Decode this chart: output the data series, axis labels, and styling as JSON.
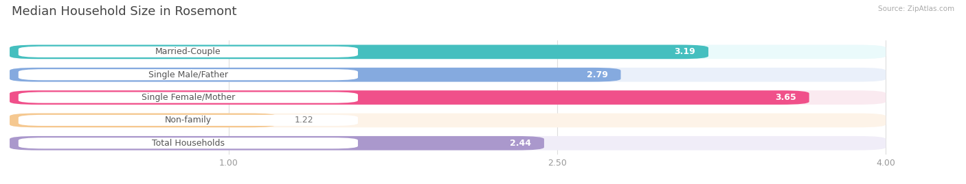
{
  "title": "Median Household Size in Rosemont",
  "source": "Source: ZipAtlas.com",
  "categories": [
    "Married-Couple",
    "Single Male/Father",
    "Single Female/Mother",
    "Non-family",
    "Total Households"
  ],
  "values": [
    3.19,
    2.79,
    3.65,
    1.22,
    2.44
  ],
  "bar_colors": [
    "#45BFBF",
    "#85AADF",
    "#F0508A",
    "#F5C890",
    "#AA98CC"
  ],
  "bar_bg_colors": [
    "#EAFAFB",
    "#EAF0FA",
    "#FAEAF0",
    "#FDF3E8",
    "#F0EDF8"
  ],
  "label_pill_colors": [
    "#45BFBF",
    "#85AADF",
    "#F0508A",
    "#F5C890",
    "#AA98CC"
  ],
  "value_inside": [
    true,
    true,
    false,
    false,
    true
  ],
  "xlim": [
    0,
    4.3
  ],
  "xmin": 0,
  "xticks": [
    1.0,
    2.5,
    4.0
  ],
  "title_fontsize": 13,
  "label_fontsize": 9,
  "value_fontsize": 9,
  "background_color": "#ffffff",
  "bar_area_bg": "#f5f5f5"
}
